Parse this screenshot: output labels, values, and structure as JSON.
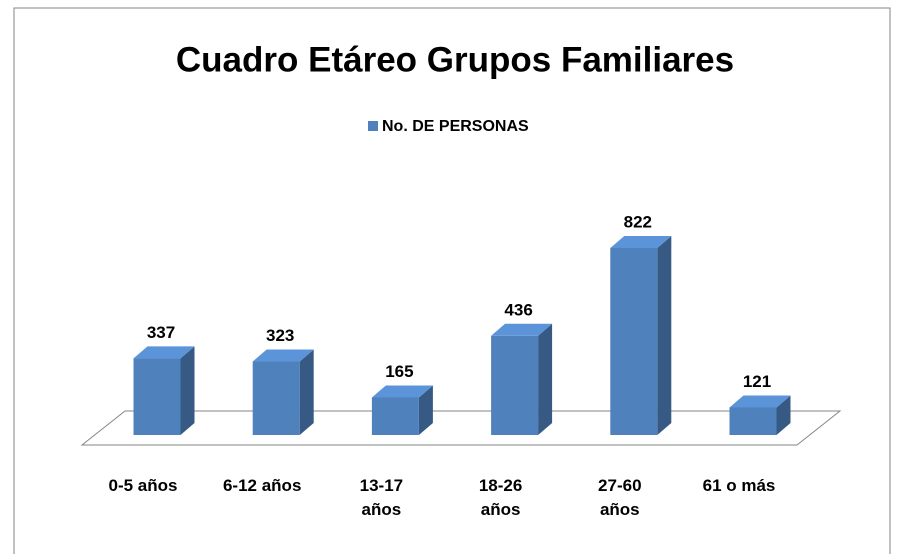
{
  "chart_data": {
    "type": "bar3d",
    "title": "Cuadro Etáreo Grupos Familiares",
    "categories": [
      "0-5 años",
      "6-12 años",
      "13-17 años",
      "18-26 años",
      "27-60 años",
      "61 o más"
    ],
    "series": [
      {
        "name": "No. DE PERSONAS",
        "color": "#4f81bd",
        "values": [
          337,
          323,
          165,
          436,
          822,
          121
        ]
      }
    ],
    "legend": "top"
  }
}
